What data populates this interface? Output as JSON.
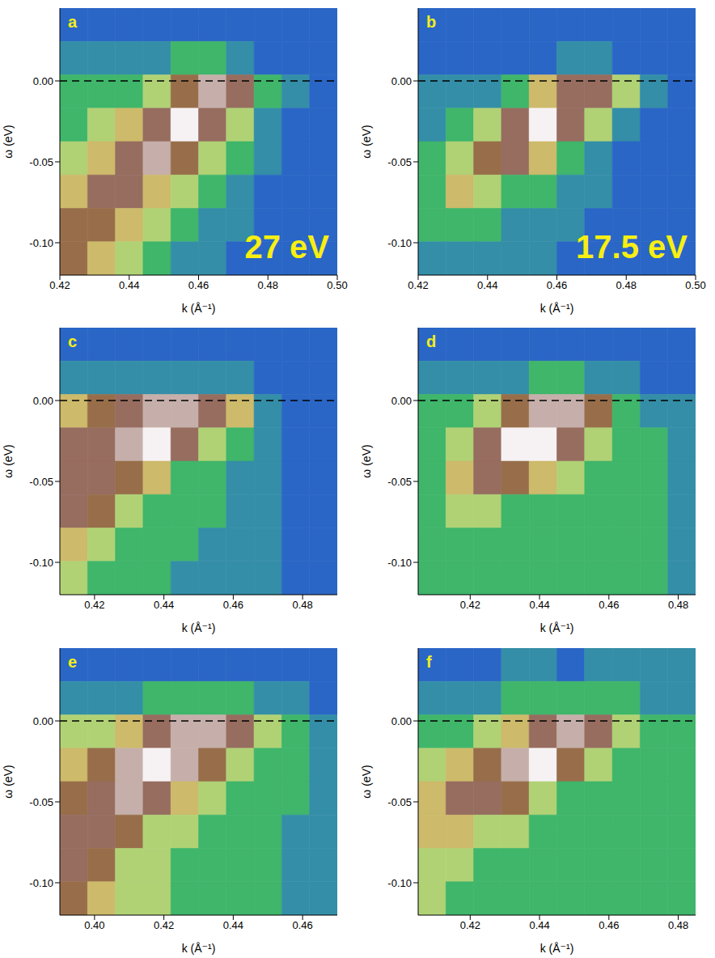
{
  "chart_data": [
    {
      "type": "heatmap",
      "panel": "a",
      "annotation": "27 eV",
      "xlabel": "k (Å⁻¹)",
      "ylabel": "ω (eV)",
      "xlim": [
        0.42,
        0.5
      ],
      "xticks": [
        0.42,
        0.44,
        0.46,
        0.48,
        {
          "value": 0.5,
          "label": "0.50"
        }
      ],
      "ylim": [
        -0.12,
        0.045
      ],
      "yticks": [
        {
          "value": -0.1,
          "label": "-0.10"
        },
        -0.05,
        {
          "value": 0,
          "label": "0.00"
        }
      ],
      "reference_line": {
        "y": 0,
        "line_style": "dashed"
      },
      "zlim": [
        0,
        9
      ],
      "cells": [
        [
          1,
          1,
          1,
          1,
          1,
          1,
          1,
          1,
          1,
          1
        ],
        [
          2,
          2,
          2,
          2,
          3,
          3,
          2,
          1,
          1,
          1
        ],
        [
          3,
          3,
          3,
          4,
          6,
          8,
          7,
          3,
          2,
          1
        ],
        [
          3,
          4,
          5,
          7,
          9,
          7,
          4,
          2,
          1,
          1
        ],
        [
          4,
          5,
          7,
          8,
          6,
          4,
          3,
          2,
          1,
          1
        ],
        [
          5,
          7,
          7,
          5,
          4,
          3,
          2,
          1,
          1,
          1
        ],
        [
          6,
          6,
          5,
          4,
          3,
          2,
          2,
          1,
          1,
          1
        ],
        [
          6,
          5,
          4,
          3,
          2,
          2,
          1,
          1,
          1,
          1
        ]
      ]
    },
    {
      "type": "heatmap",
      "panel": "b",
      "annotation": "17.5 eV",
      "xlabel": "k (Å⁻¹)",
      "ylabel": "ω (eV)",
      "xlim": [
        0.42,
        0.5
      ],
      "xticks": [
        0.42,
        0.44,
        0.46,
        0.48,
        {
          "value": 0.5,
          "label": "0.50"
        }
      ],
      "ylim": [
        -0.12,
        0.045
      ],
      "yticks": [
        {
          "value": -0.1,
          "label": "-0.10"
        },
        -0.05,
        {
          "value": 0,
          "label": "0.00"
        }
      ],
      "reference_line": {
        "y": 0,
        "line_style": "dashed"
      },
      "zlim": [
        0,
        9
      ],
      "cells": [
        [
          1,
          1,
          1,
          1,
          1,
          1,
          1,
          1,
          1,
          1
        ],
        [
          1,
          1,
          1,
          1,
          1,
          2,
          2,
          1,
          1,
          1
        ],
        [
          2,
          2,
          2,
          3,
          5,
          7,
          7,
          4,
          2,
          1
        ],
        [
          2,
          3,
          4,
          7,
          9,
          7,
          4,
          2,
          1,
          1
        ],
        [
          3,
          4,
          6,
          7,
          5,
          3,
          2,
          1,
          1,
          1
        ],
        [
          3,
          5,
          4,
          3,
          3,
          2,
          2,
          1,
          1,
          1
        ],
        [
          3,
          3,
          3,
          2,
          2,
          2,
          1,
          1,
          1,
          1
        ],
        [
          2,
          2,
          2,
          2,
          2,
          1,
          1,
          1,
          1,
          1
        ]
      ]
    },
    {
      "type": "heatmap",
      "panel": "c",
      "xlabel": "k (Å⁻¹)",
      "ylabel": "ω (eV)",
      "xlim": [
        0.41,
        0.49
      ],
      "xticks": [
        0.42,
        0.44,
        0.46,
        0.48
      ],
      "ylim": [
        -0.12,
        0.045
      ],
      "yticks": [
        {
          "value": -0.1,
          "label": "-0.10"
        },
        -0.05,
        {
          "value": 0,
          "label": "0.00"
        }
      ],
      "reference_line": {
        "y": 0,
        "line_style": "dashed"
      },
      "zlim": [
        0,
        9
      ],
      "cells": [
        [
          1,
          1,
          1,
          1,
          1,
          1,
          1,
          1,
          1,
          1
        ],
        [
          2,
          2,
          2,
          2,
          2,
          2,
          2,
          1,
          1,
          1
        ],
        [
          5,
          6,
          7,
          8,
          8,
          7,
          5,
          2,
          1,
          1
        ],
        [
          7,
          7,
          8,
          9,
          7,
          4,
          3,
          2,
          1,
          1
        ],
        [
          7,
          7,
          6,
          5,
          3,
          3,
          2,
          2,
          1,
          1
        ],
        [
          7,
          6,
          4,
          3,
          3,
          3,
          2,
          2,
          1,
          1
        ],
        [
          5,
          4,
          3,
          3,
          3,
          2,
          2,
          2,
          1,
          1
        ],
        [
          4,
          3,
          3,
          3,
          2,
          2,
          2,
          2,
          1,
          1
        ]
      ]
    },
    {
      "type": "heatmap",
      "panel": "d",
      "xlabel": "k (Å⁻¹)",
      "ylabel": "ω (eV)",
      "xlim": [
        0.405,
        0.485
      ],
      "xticks": [
        0.42,
        0.44,
        0.46,
        0.48
      ],
      "ylim": [
        -0.12,
        0.045
      ],
      "yticks": [
        {
          "value": -0.1,
          "label": "-0.10"
        },
        -0.05,
        {
          "value": 0,
          "label": "0.00"
        }
      ],
      "reference_line": {
        "y": 0,
        "line_style": "dashed"
      },
      "zlim": [
        0,
        9
      ],
      "cells": [
        [
          1,
          1,
          1,
          1,
          1,
          1,
          1,
          1,
          1,
          1
        ],
        [
          2,
          2,
          2,
          2,
          3,
          3,
          2,
          2,
          1,
          1
        ],
        [
          3,
          3,
          4,
          6,
          8,
          8,
          6,
          3,
          2,
          2
        ],
        [
          3,
          4,
          7,
          9,
          9,
          7,
          4,
          3,
          3,
          2
        ],
        [
          3,
          5,
          7,
          6,
          5,
          4,
          3,
          3,
          3,
          2
        ],
        [
          3,
          4,
          4,
          3,
          3,
          3,
          3,
          3,
          3,
          2
        ],
        [
          3,
          3,
          3,
          3,
          3,
          3,
          3,
          3,
          3,
          2
        ],
        [
          3,
          3,
          3,
          3,
          3,
          3,
          3,
          3,
          3,
          2
        ]
      ]
    },
    {
      "type": "heatmap",
      "panel": "e",
      "xlabel": "k (Å⁻¹)",
      "ylabel": "ω (eV)",
      "xlim": [
        0.39,
        0.47
      ],
      "xticks": [
        {
          "value": 0.4,
          "label": "0.40"
        },
        0.42,
        0.44,
        0.46
      ],
      "ylim": [
        -0.12,
        0.045
      ],
      "yticks": [
        {
          "value": -0.1,
          "label": "-0.10"
        },
        -0.05,
        {
          "value": 0,
          "label": "0.00"
        }
      ],
      "reference_line": {
        "y": 0,
        "line_style": "dashed"
      },
      "zlim": [
        0,
        9
      ],
      "cells": [
        [
          1,
          1,
          1,
          1,
          1,
          1,
          1,
          1,
          1,
          1
        ],
        [
          2,
          2,
          2,
          3,
          3,
          3,
          3,
          2,
          2,
          1
        ],
        [
          4,
          4,
          5,
          7,
          8,
          8,
          7,
          4,
          3,
          2
        ],
        [
          5,
          6,
          8,
          9,
          8,
          6,
          4,
          3,
          3,
          2
        ],
        [
          6,
          7,
          8,
          7,
          5,
          4,
          3,
          3,
          3,
          2
        ],
        [
          7,
          7,
          6,
          4,
          4,
          3,
          3,
          3,
          2,
          2
        ],
        [
          7,
          6,
          4,
          4,
          3,
          3,
          3,
          3,
          2,
          2
        ],
        [
          6,
          5,
          4,
          4,
          3,
          3,
          3,
          3,
          2,
          2
        ]
      ]
    },
    {
      "type": "heatmap",
      "panel": "f",
      "xlabel": "k (Å⁻¹)",
      "ylabel": "ω (eV)",
      "xlim": [
        0.405,
        0.485
      ],
      "xticks": [
        0.42,
        0.44,
        0.46,
        0.48
      ],
      "ylim": [
        -0.12,
        0.045
      ],
      "yticks": [
        {
          "value": -0.1,
          "label": "-0.10"
        },
        -0.05,
        {
          "value": 0,
          "label": "0.00"
        }
      ],
      "reference_line": {
        "y": 0,
        "line_style": "dashed"
      },
      "zlim": [
        0,
        9
      ],
      "cells": [
        [
          1,
          1,
          1,
          2,
          2,
          1,
          2,
          2,
          2,
          2
        ],
        [
          2,
          2,
          2,
          3,
          3,
          3,
          3,
          3,
          2,
          2
        ],
        [
          3,
          3,
          4,
          5,
          7,
          8,
          7,
          4,
          3,
          3
        ],
        [
          4,
          5,
          6,
          8,
          9,
          6,
          4,
          3,
          3,
          3
        ],
        [
          5,
          7,
          7,
          6,
          4,
          3,
          3,
          3,
          3,
          3
        ],
        [
          5,
          5,
          4,
          4,
          3,
          3,
          3,
          3,
          3,
          3
        ],
        [
          4,
          4,
          3,
          3,
          3,
          3,
          3,
          3,
          3,
          3
        ],
        [
          4,
          3,
          3,
          3,
          3,
          3,
          3,
          3,
          3,
          3
        ]
      ]
    }
  ]
}
